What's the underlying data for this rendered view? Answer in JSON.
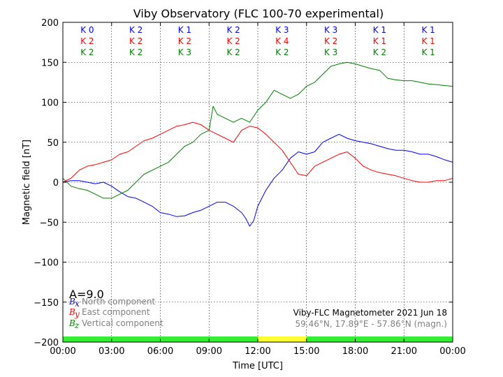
{
  "chart_data": {
    "type": "line",
    "title": "Viby Observatory (FLC 100-70 experimental)",
    "xlabel": "Time [UTC]",
    "ylabel": "Magnetic field [nT]",
    "xlim": [
      0,
      24
    ],
    "ylim": [
      -200,
      200
    ],
    "x_tick_labels": [
      "00:00",
      "03:00",
      "06:00",
      "09:00",
      "12:00",
      "15:00",
      "18:00",
      "21:00",
      "00:00"
    ],
    "y_ticks": [
      -200,
      -150,
      -100,
      -50,
      0,
      50,
      100,
      150,
      200
    ],
    "y_tick_labels": [
      "−200",
      "−150",
      "−100",
      "−50",
      "0",
      "50",
      "100",
      "150",
      "200"
    ],
    "grid": true,
    "series": [
      {
        "name": "North component",
        "symbol": "B",
        "subscript": "x",
        "color": "#0000ff",
        "x": [
          0,
          0.5,
          1,
          1.5,
          2,
          2.5,
          3,
          3.5,
          4,
          4.5,
          5,
          5.5,
          6,
          6.5,
          7,
          7.5,
          8,
          8.5,
          9,
          9.5,
          10,
          10.5,
          11,
          11.25,
          11.5,
          11.75,
          12,
          12.5,
          13,
          13.5,
          14,
          14.5,
          15,
          15.5,
          16,
          16.5,
          17,
          17.5,
          18,
          18.5,
          19,
          19.5,
          20,
          20.5,
          21,
          21.5,
          22,
          22.5,
          23,
          23.5,
          24
        ],
        "values": [
          0,
          2,
          2,
          0,
          -2,
          0,
          -5,
          -12,
          -18,
          -20,
          -25,
          -30,
          -38,
          -40,
          -43,
          -42,
          -38,
          -35,
          -30,
          -25,
          -25,
          -30,
          -38,
          -45,
          -55,
          -48,
          -30,
          -10,
          5,
          15,
          30,
          38,
          35,
          38,
          50,
          55,
          60,
          55,
          52,
          50,
          48,
          45,
          42,
          40,
          40,
          38,
          35,
          35,
          32,
          28,
          25
        ]
      },
      {
        "name": "East component",
        "symbol": "B",
        "subscript": "y",
        "color": "#ff0000",
        "x": [
          0,
          0.5,
          1,
          1.5,
          2,
          2.5,
          3,
          3.5,
          4,
          4.5,
          5,
          5.5,
          6,
          6.5,
          7,
          7.5,
          8,
          8.5,
          9,
          9.5,
          10,
          10.5,
          11,
          11.5,
          12,
          12.5,
          13,
          13.5,
          14,
          14.5,
          15,
          15.5,
          16,
          16.5,
          17,
          17.5,
          18,
          18.5,
          19,
          19.5,
          20,
          20.5,
          21,
          21.5,
          22,
          22.5,
          23,
          23.5,
          24
        ],
        "values": [
          0,
          5,
          15,
          20,
          22,
          25,
          28,
          35,
          38,
          45,
          52,
          55,
          60,
          65,
          70,
          72,
          75,
          72,
          65,
          60,
          55,
          50,
          65,
          70,
          68,
          60,
          50,
          40,
          25,
          10,
          8,
          20,
          25,
          30,
          35,
          38,
          30,
          20,
          15,
          12,
          10,
          8,
          5,
          2,
          0,
          0,
          2,
          2,
          5
        ]
      },
      {
        "name": "Vertical component",
        "symbol": "B",
        "subscript": "z",
        "color": "#008000",
        "x": [
          0,
          0.5,
          1,
          1.5,
          2,
          2.5,
          3,
          3.5,
          4,
          4.5,
          5,
          5.5,
          6,
          6.5,
          7,
          7.5,
          8,
          8.5,
          9,
          9.25,
          9.5,
          10,
          10.5,
          11,
          11.5,
          12,
          12.5,
          13,
          13.5,
          14,
          14.5,
          15,
          15.5,
          16,
          16.5,
          17,
          17.5,
          18,
          18.5,
          19,
          19.5,
          20,
          20.5,
          21,
          21.5,
          22,
          22.5,
          23,
          23.5,
          24
        ],
        "values": [
          5,
          -5,
          -8,
          -10,
          -15,
          -20,
          -20,
          -15,
          -10,
          0,
          10,
          15,
          20,
          25,
          35,
          45,
          50,
          60,
          65,
          95,
          85,
          80,
          75,
          80,
          75,
          90,
          100,
          115,
          110,
          105,
          110,
          120,
          125,
          135,
          145,
          148,
          150,
          148,
          145,
          142,
          140,
          130,
          128,
          127,
          127,
          125,
          123,
          122,
          121,
          120
        ]
      }
    ],
    "k_index_rows": [
      {
        "component": "x",
        "color": "#0000ff",
        "values": [
          "K 0",
          "K 2",
          "K 1",
          "K 2",
          "K 3",
          "K 3",
          "K 1",
          "K 1"
        ]
      },
      {
        "component": "y",
        "color": "#ff0000",
        "values": [
          "K 2",
          "K 2",
          "K 2",
          "K 2",
          "K 4",
          "K 2",
          "K 1",
          "K 1"
        ]
      },
      {
        "component": "z",
        "color": "#008000",
        "values": [
          "K 2",
          "K 2",
          "K 3",
          "K 2",
          "K 2",
          "K 3",
          "K 2",
          "K 1"
        ]
      }
    ],
    "a_index": "A=9.0",
    "info_line1": "Viby-FLC Magnetometer 2021 Jun 18",
    "info_line2": "59.46°N, 17.89°E - 57.86°N (magn.)",
    "status_bar": [
      {
        "start": 0,
        "end": 12,
        "color": "#33ee33"
      },
      {
        "start": 12,
        "end": 15,
        "color": "#ffff33"
      },
      {
        "start": 15,
        "end": 24,
        "color": "#33ee33"
      }
    ],
    "legend_placement": "bottom-left"
  }
}
